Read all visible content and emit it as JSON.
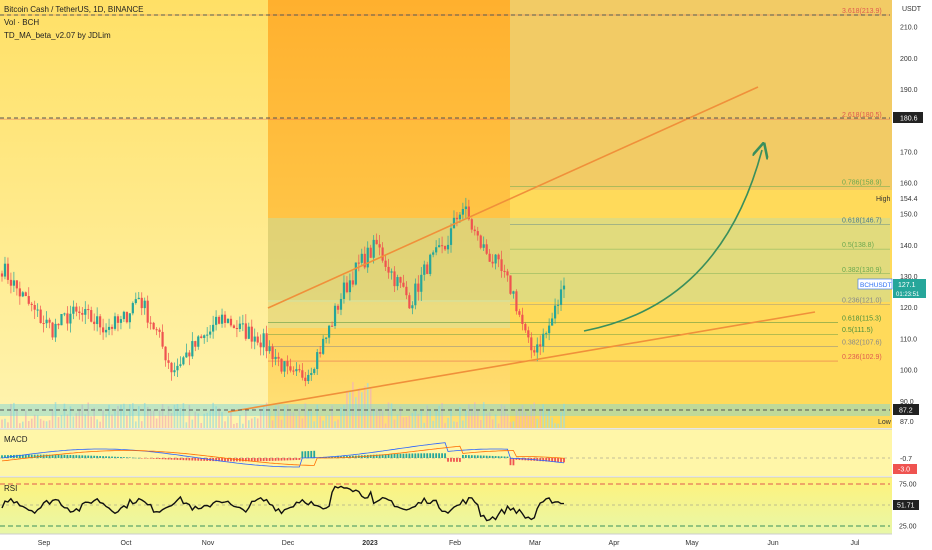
{
  "header": {
    "symbol_line": "Bitcoin Cash / TetherUS, 1D, BINANCE",
    "vol_line": "Vol · BCH",
    "indicator_line": "TD_MA_beta_v2.07 by JDLim"
  },
  "price_axis": {
    "currency": "USDT",
    "ticks": [
      "210.0",
      "200.0",
      "190.0",
      "180.0",
      "170.0",
      "160.0",
      "150.0",
      "140.0",
      "130.0",
      "120.0",
      "110.0",
      "100.0",
      "90.0"
    ],
    "tick_values": [
      210,
      200,
      190,
      180,
      170,
      160,
      150,
      140,
      130,
      120,
      110,
      100,
      90
    ],
    "high_label": "High",
    "high_value": "154.4",
    "low_label": "Low",
    "low_value": "87.0",
    "level_180": "180.6",
    "level_87": "87.2",
    "current_symbol": "BCHUSDT",
    "current_price": "127.1",
    "countdown": "01:23:51"
  },
  "fib_levels": [
    {
      "text": "3.618(213.9)",
      "value": 213.9,
      "color": "#e05a4f"
    },
    {
      "text": "2.618(180.5)",
      "value": 180.5,
      "color": "#e05a4f"
    },
    {
      "text": "0.786(158.9)",
      "value": 158.9,
      "color": "#6aa84f"
    },
    {
      "text": "0.618(146.7)",
      "value": 146.7,
      "color": "#4a7a8c"
    },
    {
      "text": "0.5(138.8)",
      "value": 138.8,
      "color": "#6aa84f"
    },
    {
      "text": "0.382(130.9)",
      "value": 130.9,
      "color": "#6aa84f"
    },
    {
      "text": "0.236(121.0)",
      "value": 121.0,
      "color": "#888888"
    },
    {
      "text": "0.618(115.3)",
      "value": 115.3,
      "color": "#4a8f3c"
    },
    {
      "text": "0.5(111.5)",
      "value": 111.5,
      "color": "#4a8f3c"
    },
    {
      "text": "0.382(107.6)",
      "value": 107.6,
      "color": "#888888"
    },
    {
      "text": "0.236(102.9)",
      "value": 102.9,
      "color": "#e05a4f"
    }
  ],
  "macd": {
    "label": "MACD",
    "tick_value": "-0.7",
    "badge_value": "-3.0"
  },
  "rsi": {
    "label": "RSI",
    "ticks": [
      "75.00",
      "50.00",
      "25.00"
    ],
    "tick_values": [
      75,
      50,
      25
    ],
    "current": "51.71"
  },
  "time_axis": {
    "labels": [
      "Sep",
      "Oct",
      "Nov",
      "Dec",
      "2023",
      "Feb",
      "Mar",
      "Apr",
      "May",
      "Jun",
      "Jul"
    ]
  },
  "colors": {
    "up": "#26a69a",
    "down": "#ef5350",
    "trendline": "#f0903a",
    "projection_arrow": "#3a8f5c",
    "bg_yellow": "#ffd84d",
    "bg_orange": "#ffb733"
  },
  "chart_data": {
    "type": "candlestick",
    "symbol": "BCHUSDT",
    "timeframe": "1D",
    "exchange": "BINANCE",
    "ylim": [
      85,
      216
    ],
    "y_scale": "linear",
    "x_labels": [
      "Sep",
      "Oct",
      "Nov",
      "Dec",
      "2023",
      "Feb",
      "Mar",
      "Apr",
      "May",
      "Jun",
      "Jul"
    ],
    "close_path": [
      [
        "Aug",
        133
      ],
      [
        "Sep",
        125
      ],
      [
        "Sep",
        118
      ],
      [
        "Sep",
        113
      ],
      [
        "Oct",
        118
      ],
      [
        "Oct",
        117
      ],
      [
        "Oct",
        114
      ],
      [
        "Oct",
        115
      ],
      [
        "Nov",
        124
      ],
      [
        "Nov",
        113
      ],
      [
        "Nov",
        100
      ],
      [
        "Nov",
        106
      ],
      [
        "Nov",
        111
      ],
      [
        "Dec",
        117
      ],
      [
        "Dec",
        113
      ],
      [
        "Dec",
        111
      ],
      [
        "Dec",
        105
      ],
      [
        "2023",
        97
      ],
      [
        "2023",
        100
      ],
      [
        "2023",
        110
      ],
      [
        "2023",
        125
      ],
      [
        "2023",
        134
      ],
      [
        "Feb",
        140
      ],
      [
        "Feb",
        130
      ],
      [
        "Feb",
        122
      ],
      [
        "Feb",
        134
      ],
      [
        "Feb",
        139
      ],
      [
        "Feb",
        153
      ],
      [
        "Feb",
        141
      ],
      [
        "Mar",
        134
      ],
      [
        "Mar",
        125
      ],
      [
        "Mar",
        106
      ],
      [
        "Mar",
        112
      ],
      [
        "Mar",
        127
      ]
    ],
    "high": 154.4,
    "low": 87.0,
    "last_price": 127.1,
    "fibonacci": [
      {
        "ratio": "3.618",
        "value": 213.9
      },
      {
        "ratio": "2.618",
        "value": 180.5
      },
      {
        "ratio": "0.786",
        "value": 158.9
      },
      {
        "ratio": "0.618",
        "value": 146.7
      },
      {
        "ratio": "0.5",
        "value": 138.8
      },
      {
        "ratio": "0.382",
        "value": 130.9
      },
      {
        "ratio": "0.236",
        "value": 121.0
      },
      {
        "ratio": "0.618",
        "value": 115.3
      },
      {
        "ratio": "0.5",
        "value": 111.5
      },
      {
        "ratio": "0.382",
        "value": 107.6
      },
      {
        "ratio": "0.236",
        "value": 102.9
      }
    ],
    "horizontal_levels": [
      180.6,
      87.2
    ],
    "trendlines": "ascending broadening wedge (orange), green projection arrow toward ~170",
    "sub_panels": [
      "MACD",
      "RSI"
    ],
    "rsi_current": 51.71,
    "rsi_levels": [
      75,
      50,
      25
    ]
  }
}
